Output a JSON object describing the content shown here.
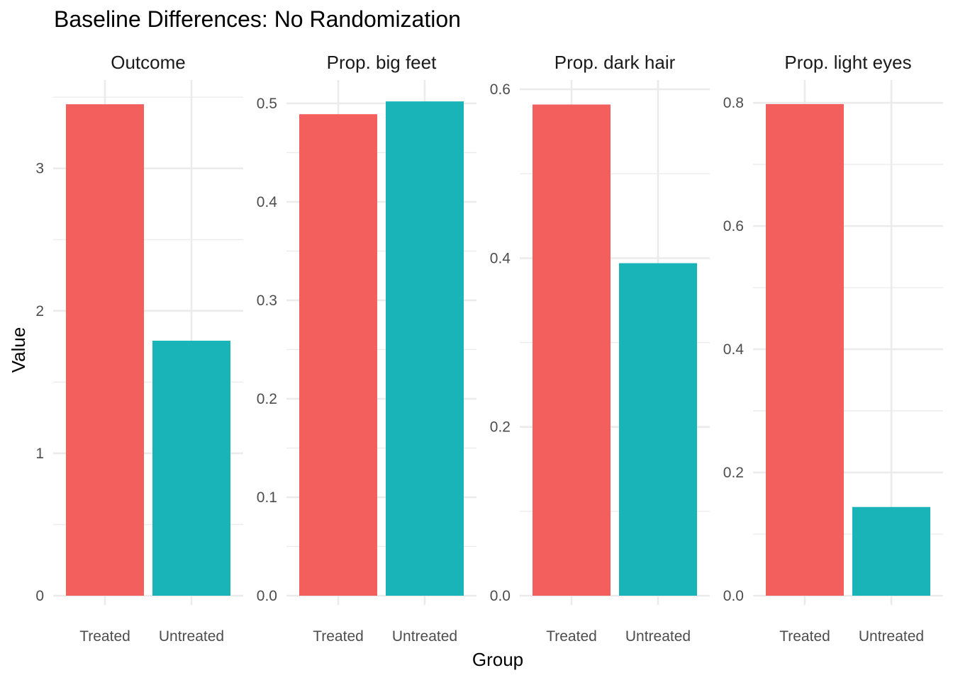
{
  "chart_data": {
    "type": "bar",
    "title": "Baseline Differences: No Randomization",
    "xlabel": "Group",
    "ylabel": "Value",
    "categories": [
      "Treated",
      "Untreated"
    ],
    "colors": {
      "Treated": "#F25F5C",
      "Untreated": "#19B4B7"
    },
    "grid": true,
    "legend": "none",
    "panels": [
      {
        "name": "Outcome",
        "values": [
          3.45,
          1.79
        ],
        "ylim": [
          0,
          3.62
        ],
        "yticks": [
          0,
          1,
          2,
          3
        ],
        "ytick_labels": [
          "0",
          "1",
          "2",
          "3"
        ],
        "minor_ticks": [
          0.5,
          1.5,
          2.5,
          3.5
        ]
      },
      {
        "name": "Prop. big feet",
        "values": [
          0.489,
          0.502
        ],
        "ylim": [
          0,
          0.5237
        ],
        "yticks": [
          0.0,
          0.1,
          0.2,
          0.3,
          0.4,
          0.5
        ],
        "ytick_labels": [
          "0.0",
          "0.1",
          "0.2",
          "0.3",
          "0.4",
          "0.5"
        ],
        "minor_ticks": [
          0.05,
          0.15,
          0.25,
          0.35,
          0.45
        ]
      },
      {
        "name": "Prop. dark hair",
        "values": [
          0.582,
          0.394
        ],
        "ylim": [
          0,
          0.611
        ],
        "yticks": [
          0.0,
          0.2,
          0.4,
          0.6
        ],
        "ytick_labels": [
          "0.0",
          "0.2",
          "0.4",
          "0.6"
        ],
        "minor_ticks": [
          0.1,
          0.3,
          0.5
        ]
      },
      {
        "name": "Prop. light eyes",
        "values": [
          0.798,
          0.144
        ],
        "ylim": [
          0,
          0.837
        ],
        "yticks": [
          0.0,
          0.2,
          0.4,
          0.6,
          0.8
        ],
        "ytick_labels": [
          "0.0",
          "0.2",
          "0.4",
          "0.6",
          "0.8"
        ],
        "minor_ticks": [
          0.1,
          0.3,
          0.5,
          0.7
        ]
      }
    ]
  }
}
